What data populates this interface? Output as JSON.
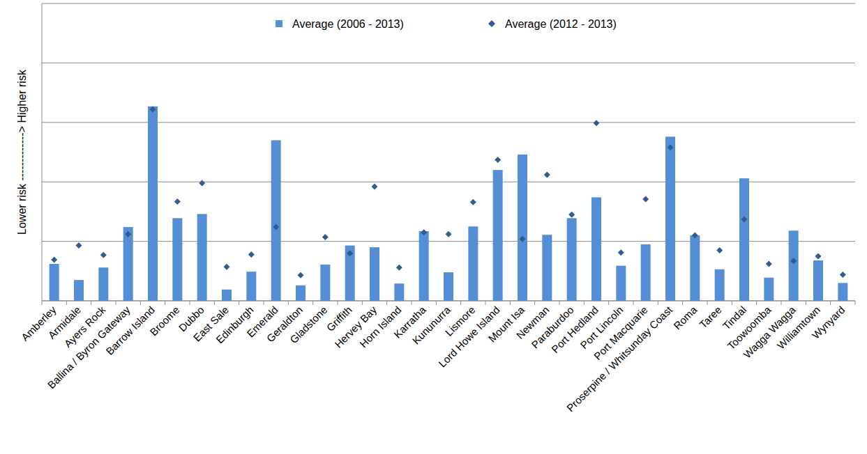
{
  "chart_data": {
    "type": "bar",
    "y_label": "Lower risk -------------> Higher risk",
    "categories": [
      "Amberley",
      "Armidale",
      "Ayers Rock",
      "Ballina / Byron Gateway",
      "Barrow Island",
      "Broome",
      "Dubbo",
      "East Sale",
      "Edinburgh",
      "Emerald",
      "Geraldton",
      "Gladstone",
      "Griffith",
      "Hervey Bay",
      "Horn Island",
      "Karratha",
      "Kununurra",
      "Lismore",
      "Lord Howe Island",
      "Mount Isa",
      "Newman",
      "Paraburdoo",
      "Port Hedland",
      "Port Lincoln",
      "Port Macquarie",
      "Proserpine / Whitsunday Coast",
      "Roma",
      "Taree",
      "Tindal",
      "Toowoomba",
      "Wagga Wagga",
      "Williamtown",
      "Wynyard"
    ],
    "series": [
      {
        "name": "Average (2006 - 2013)",
        "type": "bar",
        "color": "#558ed5",
        "values": [
          0.62,
          0.35,
          0.56,
          1.24,
          3.27,
          1.39,
          1.46,
          0.19,
          0.49,
          2.7,
          0.26,
          0.61,
          0.93,
          0.9,
          0.29,
          1.17,
          0.48,
          1.25,
          2.2,
          2.46,
          1.11,
          1.39,
          1.74,
          0.59,
          0.95,
          2.76,
          1.1,
          0.53,
          2.06,
          0.39,
          1.18,
          0.68,
          0.3
        ]
      },
      {
        "name": "Average (2012 - 2013)",
        "type": "scatter",
        "marker": "diamond",
        "color": "#2f5d8f",
        "values": [
          0.69,
          0.93,
          0.77,
          1.12,
          3.22,
          1.67,
          1.98,
          0.57,
          0.78,
          1.24,
          0.43,
          1.07,
          0.8,
          1.92,
          0.56,
          1.15,
          1.12,
          1.66,
          2.37,
          1.04,
          2.12,
          1.45,
          2.99,
          0.81,
          1.71,
          2.58,
          1.1,
          0.85,
          1.37,
          0.62,
          0.67,
          0.75,
          0.44
        ]
      }
    ],
    "ylim": [
      0,
      5
    ],
    "yticks": [
      0,
      1,
      2,
      3,
      4,
      5
    ],
    "grid": true,
    "legend": "top",
    "tick_labels": "x"
  }
}
